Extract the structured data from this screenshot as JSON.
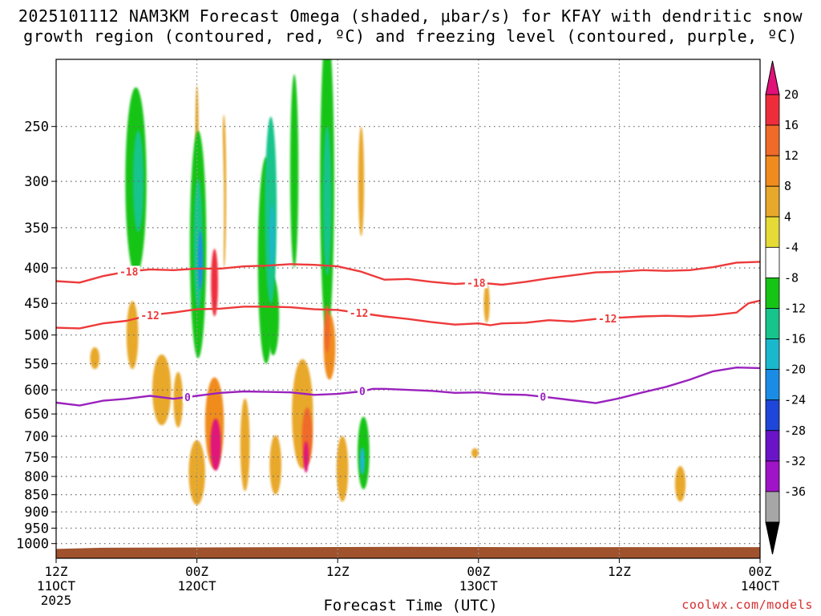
{
  "chart_data": {
    "type": "heatmap",
    "title_line1": "2025101112 NAM3KM Forecast Omega (shaded, μbar/s) for KFAY with dendritic snow",
    "title_line2": "growth region (contoured, red, ºC) and freezing level (contoured, purple, ºC)",
    "xlabel": "Forecast Time (UTC)",
    "ylabel": "",
    "y_axis": {
      "type": "pressure",
      "unit": "hPa",
      "ylim": [
        1050,
        200
      ],
      "ticks": [
        250,
        300,
        350,
        400,
        450,
        500,
        550,
        600,
        650,
        700,
        750,
        800,
        850,
        900,
        950,
        1000
      ]
    },
    "x_axis": {
      "xlim": [
        0,
        60
      ],
      "unit": "forecast hours from 12Z 11OCT 2025",
      "ticks": [
        {
          "hour": 0,
          "line1": "12Z",
          "line2": "11OCT",
          "line3": "2025"
        },
        {
          "hour": 12,
          "line1": "00Z",
          "line2": "12OCT",
          "line3": ""
        },
        {
          "hour": 24,
          "line1": "12Z",
          "line2": "",
          "line3": ""
        },
        {
          "hour": 36,
          "line1": "00Z",
          "line2": "13OCT",
          "line3": ""
        },
        {
          "hour": 48,
          "line1": "12Z",
          "line2": "",
          "line3": ""
        },
        {
          "hour": 60,
          "line1": "00Z",
          "line2": "14OCT",
          "line3": ""
        }
      ]
    },
    "colorbar": {
      "labels": [
        "20",
        "16",
        "12",
        "8",
        "4",
        "-4",
        "-8",
        "-12",
        "-16",
        "-20",
        "-24",
        "-28",
        "-32",
        "-36"
      ],
      "bins": [
        {
          "from": 16,
          "to": 20,
          "color": "#ee2d3c"
        },
        {
          "from": 12,
          "to": 16,
          "color": "#f06a2a"
        },
        {
          "from": 8,
          "to": 12,
          "color": "#f08c1e"
        },
        {
          "from": 4,
          "to": 8,
          "color": "#e8a82c"
        },
        {
          "from": -4,
          "to": 4,
          "color": "#e6da36"
        },
        {
          "from": -8,
          "to": -4,
          "color": "#ffffff"
        },
        {
          "from": -12,
          "to": -8,
          "color": "#16c416"
        },
        {
          "from": -16,
          "to": -12,
          "color": "#16c48c"
        },
        {
          "from": -20,
          "to": -16,
          "color": "#1ab8cc"
        },
        {
          "from": -24,
          "to": -20,
          "color": "#1a8ce6"
        },
        {
          "from": -28,
          "to": -24,
          "color": "#1e46d8"
        },
        {
          "from": -32,
          "to": -28,
          "color": "#6a14c8"
        },
        {
          "from": -36,
          "to": -32,
          "color": "#a014c8"
        },
        {
          "from": -40,
          "to": -36,
          "color": "#a6a6a6"
        }
      ],
      "top_triangle_color": "#e0127a",
      "bottom_triangle_color": "#000000"
    },
    "omega_blobs": [
      {
        "t": 1.2,
        "p": 290,
        "dt": 0.55,
        "dp": 40,
        "v": -7
      },
      {
        "t": 6.8,
        "p": 300,
        "dt": 0.9,
        "dp": 110,
        "v": -10
      },
      {
        "t": 7.0,
        "p": 300,
        "dt": 0.45,
        "dp": 55,
        "v": -13
      },
      {
        "t": 9.1,
        "p": 280,
        "dt": 0.55,
        "dp": 55,
        "v": -7
      },
      {
        "t": 12.1,
        "p": 370,
        "dt": 0.7,
        "dp": 170,
        "v": -11
      },
      {
        "t": 12.1,
        "p": 370,
        "dt": 0.38,
        "dp": 90,
        "v": -16
      },
      {
        "t": 12.3,
        "p": 390,
        "dt": 0.2,
        "dp": 40,
        "v": -22
      },
      {
        "t": 13.9,
        "p": 330,
        "dt": 0.4,
        "dp": 120,
        "v": -8
      },
      {
        "t": 15.5,
        "p": 290,
        "dt": 0.4,
        "dp": 80,
        "v": -7
      },
      {
        "t": 16.5,
        "p": 380,
        "dt": 0.35,
        "dp": 90,
        "v": -7
      },
      {
        "t": 17.9,
        "p": 390,
        "dt": 0.7,
        "dp": 160,
        "v": -10
      },
      {
        "t": 18.3,
        "p": 330,
        "dt": 0.5,
        "dp": 120,
        "v": -13
      },
      {
        "t": 18.4,
        "p": 360,
        "dt": 0.22,
        "dp": 40,
        "v": -18
      },
      {
        "t": 18.5,
        "p": 470,
        "dt": 0.5,
        "dp": 65,
        "v": -12
      },
      {
        "t": 20.3,
        "p": 290,
        "dt": 0.35,
        "dp": 110,
        "v": -9
      },
      {
        "t": 23.1,
        "p": 300,
        "dt": 0.6,
        "dp": 200,
        "v": -9
      },
      {
        "t": 23.1,
        "p": 320,
        "dt": 0.35,
        "dp": 90,
        "v": -13
      },
      {
        "t": 26.2,
        "p": 740,
        "dt": 0.5,
        "dp": 95,
        "v": -10
      },
      {
        "t": 26.1,
        "p": 760,
        "dt": 0.22,
        "dp": 35,
        "v": -18
      },
      {
        "t": 28.5,
        "p": 540,
        "dt": 0.5,
        "dp": 45,
        "v": -7
      },
      {
        "t": 29.6,
        "p": 830,
        "dt": 0.45,
        "dp": 40,
        "v": -7
      },
      {
        "t": 32.2,
        "p": 860,
        "dt": 0.2,
        "dp": 25,
        "v": -7
      },
      {
        "t": 13.5,
        "p": 670,
        "dt": 0.8,
        "dp": 110,
        "v": 9
      },
      {
        "t": 13.6,
        "p": 720,
        "dt": 0.45,
        "dp": 65,
        "v": 21
      },
      {
        "t": 13.5,
        "p": 420,
        "dt": 0.3,
        "dp": 50,
        "v": 17
      },
      {
        "t": 21.0,
        "p": 650,
        "dt": 0.9,
        "dp": 130,
        "v": 7
      },
      {
        "t": 21.4,
        "p": 700,
        "dt": 0.45,
        "dp": 70,
        "v": 15
      },
      {
        "t": 21.3,
        "p": 750,
        "dt": 0.22,
        "dp": 40,
        "v": 20
      },
      {
        "t": 23.3,
        "p": 520,
        "dt": 0.5,
        "dp": 60,
        "v": 9
      },
      {
        "t": 23.1,
        "p": 490,
        "dt": 0.25,
        "dp": 40,
        "v": 14
      },
      {
        "t": 9.0,
        "p": 600,
        "dt": 0.8,
        "dp": 75,
        "v": 6
      },
      {
        "t": 10.4,
        "p": 620,
        "dt": 0.4,
        "dp": 60,
        "v": 6
      },
      {
        "t": 6.5,
        "p": 500,
        "dt": 0.5,
        "dp": 60,
        "v": 6
      },
      {
        "t": 3.3,
        "p": 540,
        "dt": 0.4,
        "dp": 20,
        "v": 6
      },
      {
        "t": 36.7,
        "p": 450,
        "dt": 0.25,
        "dp": 30,
        "v": 6
      },
      {
        "t": 35.7,
        "p": 740,
        "dt": 0.3,
        "dp": 12,
        "v": 6
      },
      {
        "t": 53.2,
        "p": 820,
        "dt": 0.45,
        "dp": 50,
        "v": 6
      },
      {
        "t": 12.0,
        "p": 790,
        "dt": 0.7,
        "dp": 90,
        "v": 6
      },
      {
        "t": 16.1,
        "p": 720,
        "dt": 0.4,
        "dp": 120,
        "v": 6
      },
      {
        "t": 18.7,
        "p": 770,
        "dt": 0.5,
        "dp": 80,
        "v": 6
      },
      {
        "t": 24.4,
        "p": 780,
        "dt": 0.5,
        "dp": 90,
        "v": 6
      },
      {
        "t": 14.3,
        "p": 310,
        "dt": 0.2,
        "dp": 90,
        "v": 6
      },
      {
        "t": 12.0,
        "p": 260,
        "dt": 0.15,
        "dp": 50,
        "v": 6
      },
      {
        "t": 26.0,
        "p": 300,
        "dt": 0.25,
        "dp": 60,
        "v": 6
      }
    ],
    "contours": [
      {
        "name": "-18",
        "color": "#ee3a3a",
        "label": "-18",
        "label_at": [
          6.2,
          35.8
        ],
        "points": [
          [
            0,
            418
          ],
          [
            2,
            420
          ],
          [
            4,
            411
          ],
          [
            6,
            405
          ],
          [
            8,
            402
          ],
          [
            10,
            403
          ],
          [
            12,
            401
          ],
          [
            14,
            401
          ],
          [
            16,
            398
          ],
          [
            18,
            397
          ],
          [
            20,
            395
          ],
          [
            22,
            396
          ],
          [
            24,
            398
          ],
          [
            26,
            405
          ],
          [
            28,
            416
          ],
          [
            30,
            415
          ],
          [
            32,
            419
          ],
          [
            34,
            422
          ],
          [
            36,
            420
          ],
          [
            38,
            423
          ],
          [
            40,
            419
          ],
          [
            42,
            414
          ],
          [
            44,
            410
          ],
          [
            46,
            406
          ],
          [
            48,
            405
          ],
          [
            50,
            403
          ],
          [
            52,
            404
          ],
          [
            54,
            403
          ],
          [
            56,
            399
          ],
          [
            58,
            393
          ],
          [
            60,
            392
          ]
        ]
      },
      {
        "name": "-12",
        "color": "#ee3a3a",
        "label": "-12",
        "label_at": [
          8.0,
          25.8,
          47.0
        ],
        "points": [
          [
            0,
            488
          ],
          [
            2,
            489
          ],
          [
            4,
            481
          ],
          [
            6,
            477
          ],
          [
            8,
            468
          ],
          [
            10,
            464
          ],
          [
            12,
            459
          ],
          [
            14,
            458
          ],
          [
            16,
            455
          ],
          [
            18,
            455
          ],
          [
            20,
            456
          ],
          [
            22,
            459
          ],
          [
            24,
            460
          ],
          [
            26,
            465
          ],
          [
            28,
            470
          ],
          [
            30,
            474
          ],
          [
            32,
            479
          ],
          [
            34,
            483
          ],
          [
            36,
            481
          ],
          [
            37,
            484
          ],
          [
            38,
            481
          ],
          [
            40,
            480
          ],
          [
            42,
            476
          ],
          [
            44,
            478
          ],
          [
            46,
            474
          ],
          [
            48,
            472
          ],
          [
            50,
            470
          ],
          [
            52,
            469
          ],
          [
            54,
            470
          ],
          [
            56,
            468
          ],
          [
            58,
            464
          ],
          [
            59,
            450
          ],
          [
            60,
            446
          ]
        ]
      },
      {
        "name": "0",
        "color": "#9a22bd",
        "label": "0",
        "label_at": [
          11.2,
          26.1,
          41.5
        ],
        "points": [
          [
            0,
            626
          ],
          [
            2,
            632
          ],
          [
            4,
            622
          ],
          [
            6,
            618
          ],
          [
            8,
            612
          ],
          [
            10,
            618
          ],
          [
            12,
            612
          ],
          [
            14,
            606
          ],
          [
            16,
            603
          ],
          [
            18,
            604
          ],
          [
            20,
            605
          ],
          [
            22,
            610
          ],
          [
            24,
            608
          ],
          [
            26,
            603
          ],
          [
            27,
            598
          ],
          [
            28,
            598
          ],
          [
            30,
            600
          ],
          [
            32,
            602
          ],
          [
            34,
            606
          ],
          [
            36,
            605
          ],
          [
            38,
            609
          ],
          [
            40,
            610
          ],
          [
            42,
            615
          ],
          [
            44,
            621
          ],
          [
            46,
            627
          ],
          [
            48,
            617
          ],
          [
            50,
            605
          ],
          [
            52,
            594
          ],
          [
            54,
            580
          ],
          [
            56,
            564
          ],
          [
            58,
            557
          ],
          [
            60,
            558
          ]
        ]
      }
    ]
  },
  "credit": "coolwx.com/models"
}
